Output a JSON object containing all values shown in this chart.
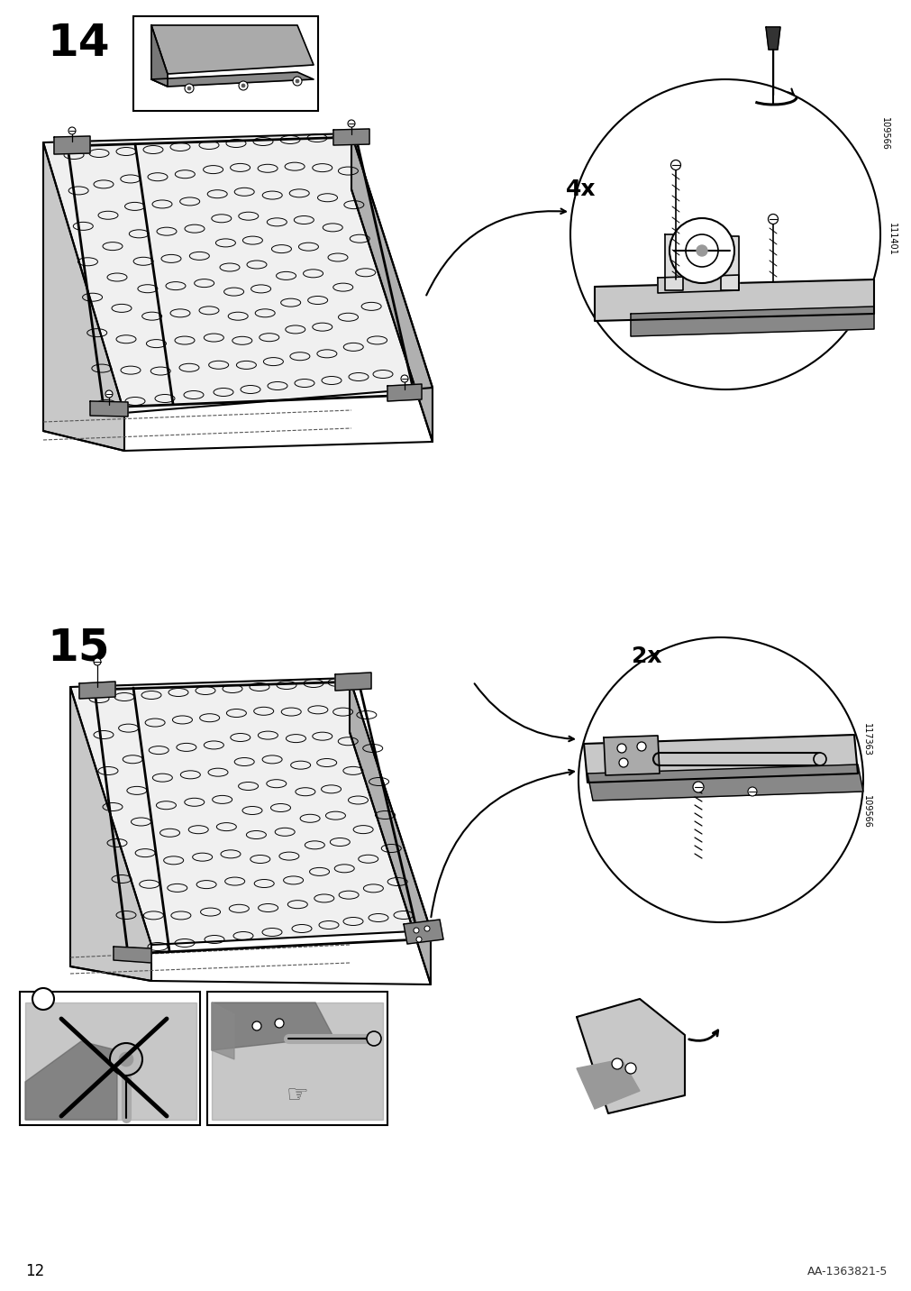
{
  "page_number": "12",
  "doc_number": "AA-1363821-5",
  "step14_label": "14",
  "step15_label": "15",
  "bg_color": "#ffffff",
  "line_color": "#000000",
  "gray_color": "#808080",
  "light_gray": "#c8c8c8",
  "dark_gray": "#555555",
  "text_4x": "4x",
  "text_2x": "2x",
  "part_109566": "109566",
  "part_111401": "111401",
  "part_117363": "117363",
  "part_109566b": "109566"
}
